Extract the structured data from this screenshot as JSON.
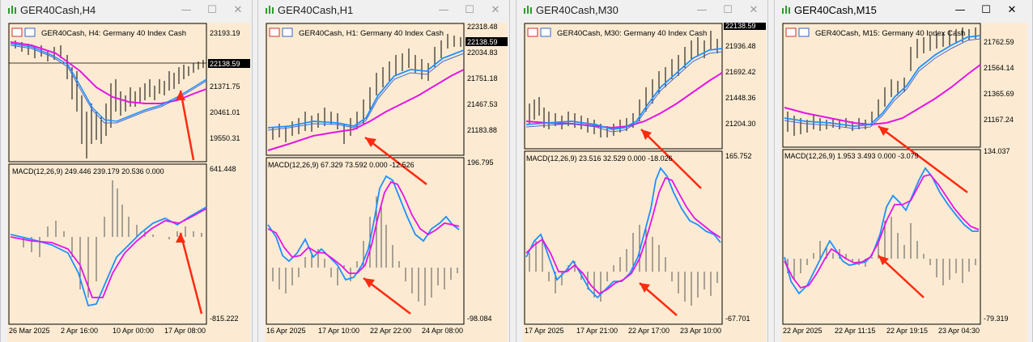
{
  "windows": [
    {
      "title": "GER40Cash,H4",
      "chart_title": "GER40Cash, H4:  Germany 40 Index Cash",
      "price_ticks": [
        "23193.19",
        "22138.59",
        "21371.75",
        "20461.01",
        "19550.31"
      ],
      "current_price": "22138.59",
      "macd_label": "MACD(12,26,9) 249.446 239.179 20.536 0.000",
      "macd_ticks": [
        "641.448",
        "-815.222"
      ],
      "time_ticks": [
        "26 Mar 2025",
        "2 Apr 16:00",
        "10 Apr 00:00",
        "17 Apr 08:00"
      ],
      "active": false
    },
    {
      "title": "GER40Cash,H1",
      "chart_title": "GER40Cash, H1:  Germany 40 Index Cash",
      "price_ticks": [
        "22318.48",
        "22138.59",
        "22034.83",
        "21751.18",
        "21467.53",
        "21183.88"
      ],
      "current_price": "22138.59",
      "macd_label": "MACD(12,26,9) 67.329 73.592 0.000 -12.526",
      "macd_ticks": [
        "196.795",
        "-98.084"
      ],
      "time_ticks": [
        "16 Apr 2025",
        "17 Apr 10:00",
        "22 Apr 22:00",
        "24 Apr 08:00"
      ],
      "active": false
    },
    {
      "title": "GER40Cash,M30",
      "chart_title": "GER40Cash, M30:  Germany 40 Index Cash",
      "price_ticks": [
        "22138.59",
        "21936.48",
        "21692.42",
        "21448.36",
        "21204.30"
      ],
      "current_price": "22138.59",
      "macd_label": "MACD(12,26,9) 23.516 32.529 0.000 -18.026",
      "macd_ticks": [
        "165.752",
        "-67.701"
      ],
      "time_ticks": [
        "17 Apr 2025",
        "17 Apr 21:00",
        "22 Apr 17:00",
        "23 Apr 10:00"
      ],
      "active": false
    },
    {
      "title": "GER40Cash,M15",
      "chart_title": "GER40Cash, M15:  Germany 40 Index Cash",
      "price_ticks": [
        "21762.59",
        "21564.14",
        "21365.69",
        "21167.24"
      ],
      "current_price": "",
      "macd_label": "MACD(12,26,9) 1.953 3.493 0.000 -3.079",
      "macd_ticks": [
        "134.037",
        "-79.319"
      ],
      "time_ticks": [
        "22 Apr 2025",
        "22 Apr 11:15",
        "22 Apr 19:15",
        "23 Apr 04:30"
      ],
      "active": true
    }
  ],
  "colors": {
    "chart_bg": "#fcebd2",
    "price_ma_blue": "#1e90ff",
    "ma_magenta": "#e614e6",
    "arrow": "#ff2a10",
    "bars": "#000000"
  },
  "icons": {
    "title": "chart-app-icon",
    "minimize": "minimize-icon",
    "maximize": "maximize-icon",
    "close": "close-icon"
  }
}
